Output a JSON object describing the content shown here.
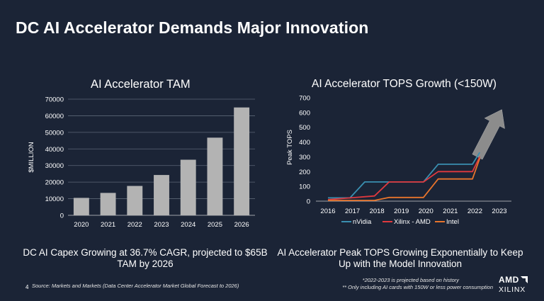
{
  "slide": {
    "title": "DC AI Accelerator Demands Major Innovation",
    "left_caption": "DC AI Capex Growing at 36.7% CAGR, projected to $65B TAM by 2026",
    "right_caption": "AI Accelerator Peak TOPS Growing Exponentially to Keep Up with the Model Innovation",
    "page_number": "4",
    "source": "Source: Markets and Markets (Data Center Accelerator Market Global Forecast to 2026)",
    "footnote_1": "*2022-2023 is projected based on history",
    "footnote_2": "** Only including AI cards with 150W or less power consumption",
    "logo_amd": "AMD",
    "logo_xilinx": "XILINX"
  },
  "chart_data": [
    {
      "type": "bar",
      "title": "AI Accelerator TAM",
      "ylabel": "$MILLION",
      "xlabel": "",
      "categories": [
        "2020",
        "2021",
        "2022",
        "2023",
        "2024",
        "2025",
        "2026"
      ],
      "values": [
        10500,
        13500,
        17700,
        24300,
        33500,
        46800,
        65000
      ],
      "ylim": [
        0,
        70000
      ],
      "yticks": [
        "0",
        "10000",
        "20000",
        "30000",
        "40000",
        "50000",
        "60000",
        "70000"
      ],
      "bar_color": "#b3b3b3",
      "grid": true
    },
    {
      "type": "line",
      "title": "AI Accelerator TOPS Growth (<150W)",
      "ylabel": "Peak TOPS",
      "xlabel": "",
      "x": [
        "2016",
        "2017",
        "2018",
        "2019",
        "2020",
        "2021",
        "2022",
        "2023"
      ],
      "ylim": [
        0,
        700
      ],
      "yticks": [
        "0",
        "100",
        "200",
        "300",
        "400",
        "500",
        "600",
        "700"
      ],
      "legend_position": "bottom",
      "series": [
        {
          "name": "nVidia",
          "color": "#3a8fb0",
          "points": [
            [
              2016,
              22
            ],
            [
              2016.9,
              22
            ],
            [
              2017.5,
              130
            ],
            [
              2018,
              130
            ],
            [
              2018.9,
              130
            ],
            [
              2019,
              130
            ],
            [
              2019.9,
              130
            ],
            [
              2020.5,
              250
            ],
            [
              2021,
              250
            ],
            [
              2021.9,
              250
            ],
            [
              2022.2,
              330
            ]
          ]
        },
        {
          "name": "Xilinx - AMD",
          "color": "#e0393e",
          "points": [
            [
              2016,
              10
            ],
            [
              2017.9,
              35
            ],
            [
              2018.5,
              130
            ],
            [
              2019,
              130
            ],
            [
              2019.9,
              130
            ],
            [
              2020.5,
              200
            ],
            [
              2021,
              200
            ],
            [
              2021.9,
              200
            ],
            [
              2022.2,
              300
            ]
          ]
        },
        {
          "name": "Intel",
          "color": "#e8742c",
          "points": [
            [
              2016,
              5
            ],
            [
              2017.9,
              5
            ],
            [
              2018.5,
              25
            ],
            [
              2019,
              25
            ],
            [
              2019.9,
              25
            ],
            [
              2020.5,
              150
            ],
            [
              2021,
              150
            ],
            [
              2021.9,
              150
            ],
            [
              2022.2,
              290
            ]
          ]
        }
      ],
      "trend_arrow_color": "#8c8c8c"
    }
  ]
}
